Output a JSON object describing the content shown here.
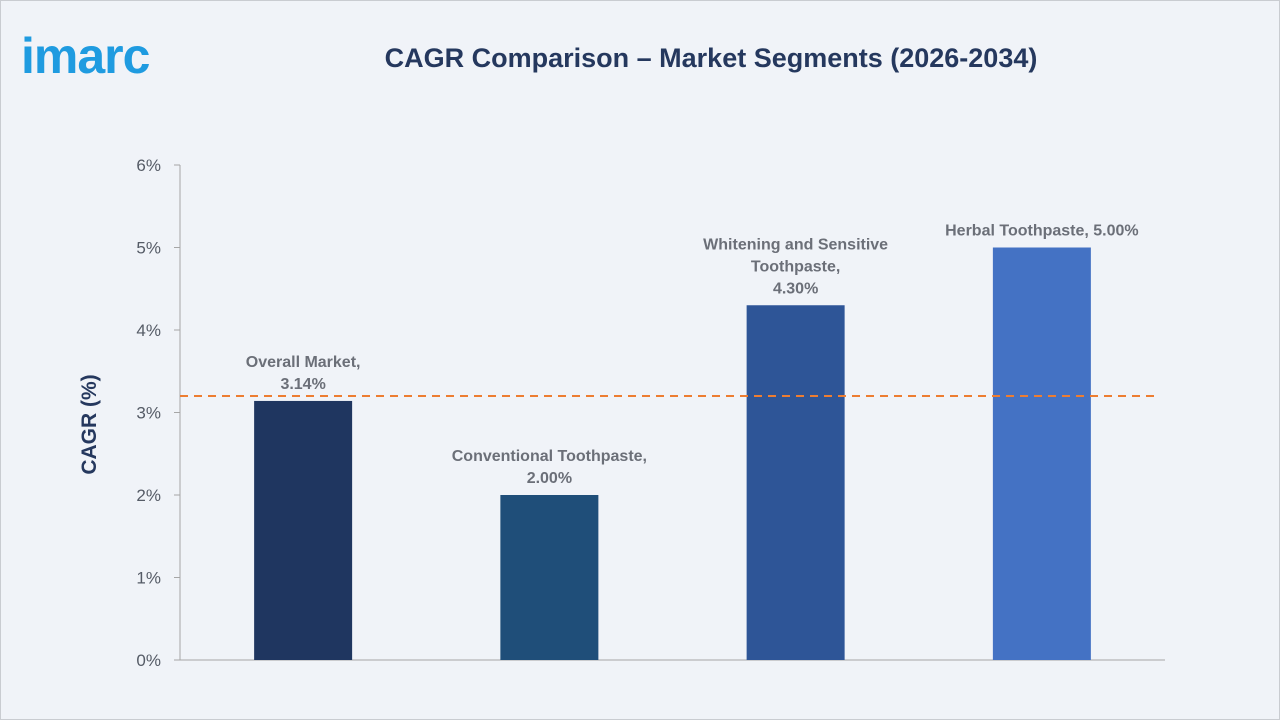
{
  "brand": {
    "logo_text": "imarc",
    "logo_color": "#1f9be0"
  },
  "chart_data": {
    "type": "bar",
    "title": "CAGR Comparison – Market Segments (2026-2034)",
    "xlabel": "",
    "ylabel": "CAGR (%)",
    "ylim": [
      0,
      6
    ],
    "yticks": [
      "0%",
      "1%",
      "2%",
      "3%",
      "4%",
      "5%",
      "6%"
    ],
    "grid": false,
    "categories": [
      "Overall Market",
      "Conventional Toothpaste",
      "Whitening and Sensitive Toothpaste",
      "Herbal Toothpaste"
    ],
    "values": [
      3.14,
      2.0,
      4.3,
      5.0
    ],
    "data_labels": [
      [
        "Overall Market,",
        "3.14%"
      ],
      [
        "Conventional Toothpaste,",
        "2.00%"
      ],
      [
        "Whitening and Sensitive",
        "Toothpaste,",
        "4.30%"
      ],
      [
        "Herbal Toothpaste, 5.00%"
      ]
    ],
    "bar_colors": [
      "#1f3660",
      "#1f4e79",
      "#2e5597",
      "#4472c4"
    ],
    "reference_line": {
      "value": 3.2,
      "style": "dashed",
      "color": "#ed7d31"
    }
  }
}
